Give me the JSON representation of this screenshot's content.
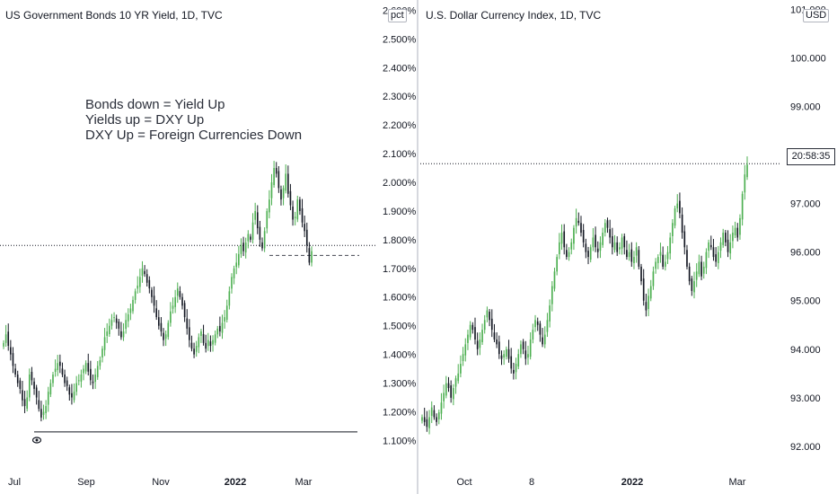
{
  "left_chart": {
    "title": "US Government Bonds 10 YR Yield, 1D, TVC",
    "unit": "pct",
    "annotations": [
      "Bonds down = Yield Up",
      "Yields up = DXY Up",
      "DXY Up = Foreign Currencies Down"
    ],
    "eye_icon": "eye-icon"
  },
  "right_chart": {
    "title": "U.S. Dollar Currency Index, 1D, TVC",
    "unit": "USD",
    "countdown": "20:58:35"
  },
  "chart_data": [
    {
      "type": "candlestick",
      "title": "US Government Bonds 10 YR Yield, 1D, TVC",
      "ylabel": "pct",
      "ylim": [
        1.07,
        2.62
      ],
      "y_ticks": [
        "2.600%",
        "2.500%",
        "2.400%",
        "2.300%",
        "2.200%",
        "2.100%",
        "2.000%",
        "1.900%",
        "1.800%",
        "1.700%",
        "1.600%",
        "1.500%",
        "1.400%",
        "1.300%",
        "1.200%",
        "1.100%"
      ],
      "x_ticks": [
        {
          "label": "Jul",
          "bold": false
        },
        {
          "label": "Sep",
          "bold": false
        },
        {
          "label": "Nov",
          "bold": false
        },
        {
          "label": "2022",
          "bold": true
        },
        {
          "label": "Mar",
          "bold": false
        }
      ],
      "horizontal_lines": [
        {
          "value": 1.78,
          "style": "dotted",
          "from": "start",
          "to": "end"
        },
        {
          "value": 1.745,
          "style": "dashed",
          "from": "Mar",
          "to": "end"
        },
        {
          "value": 1.13,
          "style": "solid",
          "from": "Jul",
          "to": "end"
        }
      ],
      "closes": [
        1.44,
        1.47,
        1.43,
        1.4,
        1.36,
        1.33,
        1.3,
        1.28,
        1.24,
        1.22,
        1.25,
        1.33,
        1.31,
        1.28,
        1.25,
        1.21,
        1.18,
        1.2,
        1.22,
        1.27,
        1.3,
        1.33,
        1.35,
        1.37,
        1.36,
        1.33,
        1.3,
        1.29,
        1.26,
        1.25,
        1.27,
        1.3,
        1.31,
        1.33,
        1.35,
        1.37,
        1.34,
        1.31,
        1.3,
        1.33,
        1.36,
        1.38,
        1.42,
        1.46,
        1.48,
        1.5,
        1.52,
        1.53,
        1.51,
        1.49,
        1.46,
        1.48,
        1.52,
        1.54,
        1.56,
        1.59,
        1.62,
        1.64,
        1.67,
        1.7,
        1.68,
        1.65,
        1.63,
        1.6,
        1.57,
        1.53,
        1.5,
        1.48,
        1.45,
        1.47,
        1.51,
        1.55,
        1.57,
        1.6,
        1.63,
        1.6,
        1.57,
        1.53,
        1.49,
        1.45,
        1.42,
        1.4,
        1.43,
        1.46,
        1.48,
        1.44,
        1.42,
        1.45,
        1.43,
        1.45,
        1.47,
        1.49,
        1.48,
        1.51,
        1.53,
        1.57,
        1.62,
        1.67,
        1.7,
        1.72,
        1.75,
        1.78,
        1.76,
        1.79,
        1.82,
        1.8,
        1.86,
        1.9,
        1.84,
        1.8,
        1.77,
        1.83,
        1.9,
        1.94,
        2.0,
        2.05,
        2.03,
        1.98,
        1.94,
        1.98,
        2.03,
        1.96,
        1.92,
        1.87,
        1.88,
        1.94,
        1.9,
        1.86,
        1.83,
        1.78,
        1.72,
        1.76
      ]
    },
    {
      "type": "candlestick",
      "title": "U.S. Dollar Currency Index, 1D, TVC",
      "ylabel": "USD",
      "ylim": [
        91.85,
        101.1
      ],
      "y_ticks": [
        "101.000",
        "100.000",
        "99.000",
        "98.000",
        "97.000",
        "96.000",
        "95.000",
        "94.000",
        "93.000",
        "92.000"
      ],
      "x_ticks": [
        {
          "label": "Oct",
          "bold": false
        },
        {
          "label": "8",
          "bold": false
        },
        {
          "label": "2022",
          "bold": true
        },
        {
          "label": "Mar",
          "bold": false
        }
      ],
      "horizontal_lines": [
        {
          "value": 97.82,
          "style": "dotted",
          "from": "start",
          "to": "end"
        }
      ],
      "last_price": 97.82,
      "countdown": "20:58:35",
      "closes": [
        92.6,
        92.5,
        92.4,
        92.6,
        92.8,
        92.6,
        92.5,
        92.7,
        92.9,
        93.1,
        93.3,
        93.2,
        93.0,
        93.2,
        93.4,
        93.5,
        93.7,
        93.9,
        94.1,
        94.3,
        94.5,
        94.4,
        94.2,
        94.0,
        94.2,
        94.4,
        94.6,
        94.8,
        94.6,
        94.4,
        94.2,
        94.1,
        93.9,
        93.8,
        93.9,
        94.0,
        93.8,
        93.6,
        93.5,
        93.7,
        93.9,
        94.1,
        94.0,
        93.8,
        93.9,
        94.2,
        94.4,
        94.6,
        94.5,
        94.3,
        94.1,
        94.3,
        94.6,
        94.9,
        95.3,
        95.6,
        95.9,
        96.2,
        96.4,
        96.1,
        95.9,
        96.0,
        96.2,
        96.5,
        96.7,
        96.6,
        96.4,
        96.2,
        96.0,
        95.9,
        96.1,
        96.3,
        96.1,
        96.0,
        96.2,
        96.4,
        96.6,
        96.5,
        96.3,
        96.1,
        96.2,
        96.0,
        96.1,
        96.3,
        96.1,
        95.9,
        96.0,
        95.8,
        95.9,
        96.1,
        95.7,
        95.4,
        95.0,
        94.8,
        95.1,
        95.3,
        95.6,
        95.8,
        95.9,
        96.0,
        95.7,
        95.8,
        96.0,
        96.3,
        96.6,
        96.9,
        97.0,
        96.8,
        96.4,
        96.1,
        95.7,
        95.4,
        95.2,
        95.4,
        95.6,
        95.8,
        95.5,
        95.7,
        96.0,
        96.2,
        96.1,
        95.9,
        95.8,
        96.0,
        96.2,
        96.4,
        96.2,
        96.0,
        96.2,
        96.4,
        96.5,
        96.3,
        96.7,
        97.2,
        97.6,
        97.8
      ]
    }
  ]
}
